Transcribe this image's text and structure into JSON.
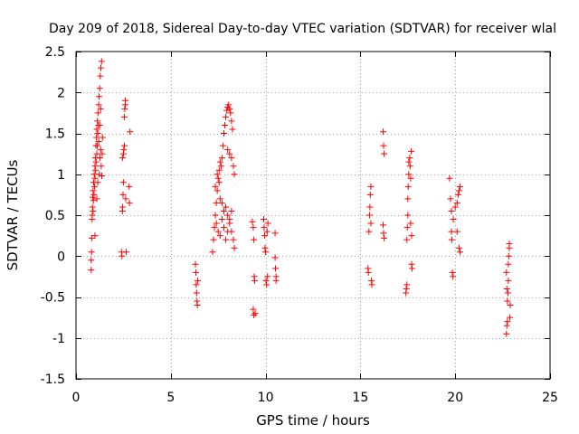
{
  "chart_data": {
    "type": "scatter",
    "title": "Day 209 of 2018, Sidereal Day-to-day VTEC variation (SDTVAR) for receiver wlal",
    "xlabel": "GPS time / hours",
    "ylabel": "SDTVAR / TECUs",
    "xlim": [
      0,
      25
    ],
    "ylim": [
      -1.5,
      2.5
    ],
    "xticks": [
      0,
      5,
      10,
      15,
      20,
      25
    ],
    "xtick_labels": [
      "0",
      "5",
      "10",
      "15",
      "20",
      "25"
    ],
    "yticks": [
      -1.5,
      -1,
      -0.5,
      0,
      0.5,
      1,
      1.5,
      2,
      2.5
    ],
    "ytick_labels": [
      "-1.5",
      "-1",
      "-0.5",
      "0",
      "0.5",
      "1",
      "1.5",
      "2",
      "2.5"
    ],
    "grid": true,
    "marker": "plus",
    "color": "#ff0000",
    "series": [
      {
        "name": "SDTVAR",
        "points": [
          [
            0.8,
            -0.17
          ],
          [
            0.8,
            -0.05
          ],
          [
            0.82,
            0.05
          ],
          [
            0.83,
            0.22
          ],
          [
            0.85,
            0.45
          ],
          [
            0.86,
            0.5
          ],
          [
            0.87,
            0.6
          ],
          [
            0.88,
            0.72
          ],
          [
            0.9,
            0.55
          ],
          [
            0.9,
            0.8
          ],
          [
            0.92,
            0.68
          ],
          [
            0.93,
            0.9
          ],
          [
            0.95,
            0.75
          ],
          [
            0.96,
            1.0
          ],
          [
            0.98,
            0.85
          ],
          [
            1.0,
            1.1
          ],
          [
            1.0,
            0.95
          ],
          [
            1.02,
            1.2
          ],
          [
            1.03,
            1.05
          ],
          [
            1.05,
            1.35
          ],
          [
            1.06,
            1.15
          ],
          [
            1.08,
            1.45
          ],
          [
            1.1,
            1.25
          ],
          [
            1.1,
            1.55
          ],
          [
            1.12,
            1.35
          ],
          [
            1.13,
            1.65
          ],
          [
            1.15,
            1.5
          ],
          [
            1.16,
            1.75
          ],
          [
            1.18,
            1.6
          ],
          [
            1.2,
            1.85
          ],
          [
            1.2,
            1.4
          ],
          [
            1.22,
            1.95
          ],
          [
            1.23,
            1.0
          ],
          [
            1.25,
            2.05
          ],
          [
            1.26,
            1.2
          ],
          [
            1.28,
            2.2
          ],
          [
            1.3,
            1.3
          ],
          [
            1.31,
            2.3
          ],
          [
            1.33,
            1.1
          ],
          [
            1.35,
            2.38
          ],
          [
            1.36,
            0.98
          ],
          [
            1.38,
            1.25
          ],
          [
            1.4,
            1.45
          ],
          [
            1.0,
            0.25
          ],
          [
            1.1,
            0.7
          ],
          [
            1.15,
            0.9
          ],
          [
            1.25,
            1.6
          ],
          [
            1.3,
            1.8
          ],
          [
            2.4,
            0.05
          ],
          [
            2.42,
            0.0
          ],
          [
            2.45,
            0.55
          ],
          [
            2.46,
            0.6
          ],
          [
            2.48,
            0.75
          ],
          [
            2.5,
            0.9
          ],
          [
            2.5,
            1.25
          ],
          [
            2.52,
            1.3
          ],
          [
            2.55,
            1.35
          ],
          [
            2.55,
            1.7
          ],
          [
            2.57,
            1.8
          ],
          [
            2.6,
            1.85
          ],
          [
            2.6,
            1.9
          ],
          [
            2.45,
            1.2
          ],
          [
            2.62,
            0.7
          ],
          [
            2.65,
            0.05
          ],
          [
            2.85,
            1.52
          ],
          [
            2.8,
            0.85
          ],
          [
            2.82,
            0.65
          ],
          [
            6.3,
            -0.1
          ],
          [
            6.32,
            -0.2
          ],
          [
            6.34,
            -0.35
          ],
          [
            6.36,
            -0.45
          ],
          [
            6.38,
            -0.55
          ],
          [
            6.4,
            -0.6
          ],
          [
            6.42,
            -0.3
          ],
          [
            7.2,
            0.05
          ],
          [
            7.25,
            0.2
          ],
          [
            7.3,
            0.35
          ],
          [
            7.35,
            0.5
          ],
          [
            7.4,
            0.65
          ],
          [
            7.45,
            0.8
          ],
          [
            7.5,
            0.95
          ],
          [
            7.55,
            1.05
          ],
          [
            7.6,
            1.15
          ],
          [
            7.65,
            1.1
          ],
          [
            7.7,
            1.2
          ],
          [
            7.75,
            1.35
          ],
          [
            7.8,
            1.5
          ],
          [
            7.85,
            1.6
          ],
          [
            7.9,
            1.7
          ],
          [
            7.95,
            1.78
          ],
          [
            8.0,
            1.82
          ],
          [
            8.05,
            1.85
          ],
          [
            8.1,
            1.8
          ],
          [
            8.15,
            1.75
          ],
          [
            8.2,
            1.65
          ],
          [
            8.25,
            1.55
          ],
          [
            7.4,
            0.4
          ],
          [
            7.5,
            0.3
          ],
          [
            7.6,
            0.25
          ],
          [
            7.7,
            0.45
          ],
          [
            7.8,
            0.55
          ],
          [
            7.9,
            0.6
          ],
          [
            8.0,
            0.5
          ],
          [
            8.1,
            0.4
          ],
          [
            8.2,
            0.3
          ],
          [
            8.3,
            0.2
          ],
          [
            8.35,
            0.1
          ],
          [
            7.6,
            0.7
          ],
          [
            7.7,
            0.65
          ],
          [
            7.8,
            0.35
          ],
          [
            7.9,
            0.2
          ],
          [
            8.0,
            0.3
          ],
          [
            8.1,
            0.45
          ],
          [
            8.2,
            0.55
          ],
          [
            8.0,
            1.3
          ],
          [
            8.1,
            1.25
          ],
          [
            8.2,
            1.2
          ],
          [
            8.3,
            1.1
          ],
          [
            8.35,
            1.0
          ],
          [
            7.55,
            0.9
          ],
          [
            7.45,
            1.0
          ],
          [
            7.35,
            0.85
          ],
          [
            9.3,
            0.42
          ],
          [
            9.35,
            0.35
          ],
          [
            9.38,
            0.2
          ],
          [
            9.4,
            -0.25
          ],
          [
            9.42,
            -0.3
          ],
          [
            9.35,
            -0.65
          ],
          [
            9.38,
            -0.72
          ],
          [
            9.45,
            -0.7
          ],
          [
            9.9,
            0.45
          ],
          [
            9.92,
            0.35
          ],
          [
            9.95,
            0.25
          ],
          [
            9.97,
            0.1
          ],
          [
            10.0,
            0.05
          ],
          [
            10.02,
            -0.3
          ],
          [
            10.05,
            -0.35
          ],
          [
            10.08,
            0.3
          ],
          [
            10.1,
            -0.25
          ],
          [
            10.12,
            0.4
          ],
          [
            10.5,
            0.28
          ],
          [
            10.5,
            -0.02
          ],
          [
            10.52,
            -0.15
          ],
          [
            10.55,
            -0.25
          ],
          [
            10.55,
            -0.3
          ],
          [
            15.4,
            -0.15
          ],
          [
            15.42,
            -0.2
          ],
          [
            15.45,
            0.3
          ],
          [
            15.48,
            0.5
          ],
          [
            15.5,
            0.6
          ],
          [
            15.52,
            0.75
          ],
          [
            15.55,
            0.85
          ],
          [
            15.58,
            -0.3
          ],
          [
            15.6,
            -0.35
          ],
          [
            15.55,
            0.4
          ],
          [
            16.2,
            1.52
          ],
          [
            16.22,
            1.35
          ],
          [
            16.25,
            1.25
          ],
          [
            16.2,
            0.38
          ],
          [
            16.22,
            0.28
          ],
          [
            16.25,
            0.22
          ],
          [
            17.4,
            -0.45
          ],
          [
            17.42,
            -0.4
          ],
          [
            17.45,
            -0.35
          ],
          [
            17.45,
            0.2
          ],
          [
            17.47,
            0.35
          ],
          [
            17.5,
            0.5
          ],
          [
            17.5,
            0.7
          ],
          [
            17.52,
            0.85
          ],
          [
            17.55,
            1.0
          ],
          [
            17.55,
            1.15
          ],
          [
            17.6,
            1.2
          ],
          [
            17.62,
            1.1
          ],
          [
            17.65,
            0.95
          ],
          [
            17.65,
            0.4
          ],
          [
            17.7,
            0.25
          ],
          [
            17.7,
            -0.1
          ],
          [
            17.72,
            -0.15
          ],
          [
            17.68,
            1.28
          ],
          [
            19.7,
            0.95
          ],
          [
            19.75,
            0.7
          ],
          [
            19.8,
            0.55
          ],
          [
            19.8,
            0.3
          ],
          [
            19.82,
            0.2
          ],
          [
            19.85,
            -0.2
          ],
          [
            19.88,
            -0.25
          ],
          [
            19.9,
            0.45
          ],
          [
            20.0,
            0.6
          ],
          [
            20.1,
            0.65
          ],
          [
            20.15,
            0.75
          ],
          [
            20.2,
            0.8
          ],
          [
            20.25,
            0.85
          ],
          [
            20.1,
            0.3
          ],
          [
            20.2,
            0.1
          ],
          [
            20.25,
            0.05
          ],
          [
            22.7,
            -0.95
          ],
          [
            22.72,
            -0.85
          ],
          [
            22.75,
            -0.8
          ],
          [
            22.75,
            -0.55
          ],
          [
            22.78,
            -0.45
          ],
          [
            22.8,
            -0.3
          ],
          [
            22.8,
            -0.1
          ],
          [
            22.82,
            0.0
          ],
          [
            22.85,
            0.1
          ],
          [
            22.85,
            0.15
          ],
          [
            22.7,
            -0.2
          ],
          [
            22.72,
            -0.4
          ],
          [
            22.9,
            -0.6
          ],
          [
            22.88,
            -0.75
          ]
        ]
      }
    ]
  }
}
